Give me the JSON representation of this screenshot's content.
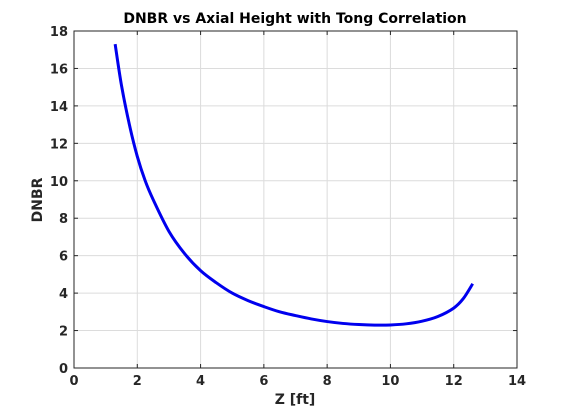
{
  "chart_data": {
    "type": "line",
    "title": "DNBR vs Axial Height with Tong Correlation",
    "xlabel": "Z [ft]",
    "ylabel": "DNBR",
    "xlim": [
      0,
      14
    ],
    "ylim": [
      0,
      18
    ],
    "xticks": [
      0,
      2,
      4,
      6,
      8,
      10,
      12,
      14
    ],
    "yticks": [
      0,
      2,
      4,
      6,
      8,
      10,
      12,
      14,
      16,
      18
    ],
    "grid": true,
    "series": [
      {
        "color": "#0000ee",
        "x": [
          1.3,
          1.5,
          1.75,
          2.0,
          2.25,
          2.5,
          3.0,
          3.5,
          4.0,
          4.5,
          5.0,
          5.5,
          6.0,
          6.5,
          7.0,
          7.5,
          8.0,
          8.5,
          9.0,
          9.5,
          10.0,
          10.5,
          11.0,
          11.5,
          12.0,
          12.3,
          12.6
        ],
        "y": [
          17.3,
          15.1,
          13.0,
          11.3,
          10.0,
          9.0,
          7.3,
          6.1,
          5.2,
          4.55,
          4.0,
          3.6,
          3.28,
          3.0,
          2.8,
          2.62,
          2.48,
          2.38,
          2.32,
          2.29,
          2.3,
          2.36,
          2.5,
          2.75,
          3.2,
          3.7,
          4.5
        ]
      }
    ]
  }
}
